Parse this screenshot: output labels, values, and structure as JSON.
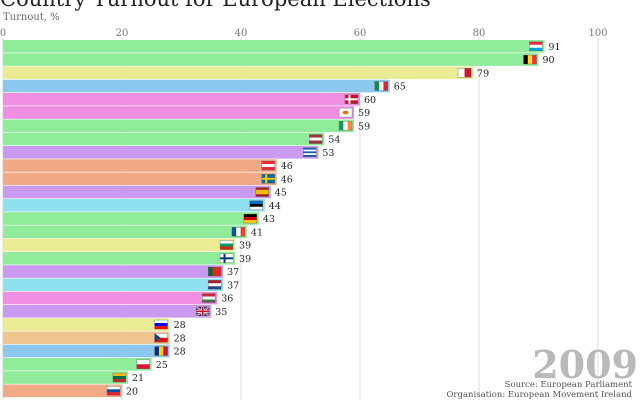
{
  "chart_data": {
    "type": "bar",
    "orientation": "horizontal",
    "title": "Country Turnout for European Elections",
    "xlabel": "Turnout, %",
    "xlim": [
      0,
      108
    ],
    "xticks": [
      0,
      20,
      40,
      60,
      80,
      100
    ],
    "year": "2009",
    "source": "Source: European Parliament",
    "organisation": "Organisation: European Movement Ireland",
    "bars": [
      {
        "country": "Luxembourg",
        "value": 91,
        "color": "#90ec9a",
        "flag": [
          [
            "#ed2939",
            "#ffffff",
            "#00a1de"
          ],
          "h"
        ]
      },
      {
        "country": "Belgium",
        "value": 90,
        "color": "#90ec9a",
        "flag": [
          [
            "#000000",
            "#fdda24",
            "#ef3340"
          ],
          "v"
        ]
      },
      {
        "country": "Malta",
        "value": 79,
        "color": "#eaec94",
        "flag": [
          [
            "#ffffff",
            "#cf142b"
          ],
          "v"
        ]
      },
      {
        "country": "Italy",
        "value": 65,
        "color": "#8cc7ee",
        "flag": [
          [
            "#009246",
            "#ffffff",
            "#ce2b37"
          ],
          "v"
        ]
      },
      {
        "country": "Denmark",
        "value": 60,
        "color": "#ee8fe2",
        "flag": [
          [
            "#c8102e"
          ],
          "cross-white"
        ]
      },
      {
        "country": "Cyprus",
        "value": 59,
        "color": "#ee8fe2",
        "flag": [
          [
            "#ffffff",
            "#d57800"
          ],
          "dot"
        ]
      },
      {
        "country": "Ireland",
        "value": 59,
        "color": "#90ec9a",
        "flag": [
          [
            "#169b62",
            "#ffffff",
            "#ff883e"
          ],
          "v"
        ]
      },
      {
        "country": "Latvia",
        "value": 54,
        "color": "#90ec9a",
        "flag": [
          [
            "#9e3039",
            "#ffffff",
            "#9e3039"
          ],
          "h"
        ]
      },
      {
        "country": "Greece",
        "value": 53,
        "color": "#c99af0",
        "flag": [
          [
            "#0d5eaf",
            "#ffffff",
            "#0d5eaf",
            "#ffffff",
            "#0d5eaf"
          ],
          "h"
        ]
      },
      {
        "country": "Austria",
        "value": 46,
        "color": "#f0ab86",
        "flag": [
          [
            "#ed2939",
            "#ffffff",
            "#ed2939"
          ],
          "h"
        ]
      },
      {
        "country": "Sweden",
        "value": 46,
        "color": "#f0ab86",
        "flag": [
          [
            "#006aa7"
          ],
          "cross-yellow"
        ]
      },
      {
        "country": "Spain",
        "value": 45,
        "color": "#c99af0",
        "flag": [
          [
            "#aa151b",
            "#f1bf00",
            "#f1bf00",
            "#aa151b"
          ],
          "h"
        ]
      },
      {
        "country": "Estonia",
        "value": 44,
        "color": "#90e0f0",
        "flag": [
          [
            "#0072ce",
            "#000000",
            "#ffffff"
          ],
          "h"
        ]
      },
      {
        "country": "Germany",
        "value": 43,
        "color": "#90ec9a",
        "flag": [
          [
            "#000000",
            "#dd0000",
            "#ffce00"
          ],
          "h"
        ]
      },
      {
        "country": "France",
        "value": 41,
        "color": "#90ec9a",
        "flag": [
          [
            "#0055a4",
            "#ffffff",
            "#ef4135"
          ],
          "v"
        ]
      },
      {
        "country": "Bulgaria",
        "value": 39,
        "color": "#eaec94",
        "flag": [
          [
            "#ffffff",
            "#00966e",
            "#d62612"
          ],
          "h"
        ]
      },
      {
        "country": "Finland",
        "value": 39,
        "color": "#90ec9a",
        "flag": [
          [
            "#ffffff"
          ],
          "cross-blue"
        ]
      },
      {
        "country": "Portugal",
        "value": 37,
        "color": "#c99af0",
        "flag": [
          [
            "#046a38",
            "#da291c",
            "#da291c"
          ],
          "v"
        ]
      },
      {
        "country": "Netherlands",
        "value": 37,
        "color": "#90e0f0",
        "flag": [
          [
            "#ae1c28",
            "#ffffff",
            "#21468b"
          ],
          "h"
        ]
      },
      {
        "country": "Hungary",
        "value": 36,
        "color": "#ee8fe2",
        "flag": [
          [
            "#ce2939",
            "#ffffff",
            "#477050"
          ],
          "h"
        ]
      },
      {
        "country": "United Kingdom",
        "value": 35,
        "color": "#c99af0",
        "flag": [
          [
            "#012169"
          ],
          "union"
        ]
      },
      {
        "country": "Slovenia",
        "value": 28,
        "color": "#eaec94",
        "flag": [
          [
            "#ffffff",
            "#0000ff",
            "#ff0000"
          ],
          "h"
        ]
      },
      {
        "country": "Czech Republic",
        "value": 28,
        "color": "#f0c48e",
        "flag": [
          [
            "#ffffff",
            "#d7141a"
          ],
          "czech"
        ]
      },
      {
        "country": "Romania",
        "value": 28,
        "color": "#8cc7ee",
        "flag": [
          [
            "#002b7f",
            "#fcd116",
            "#ce1126"
          ],
          "v"
        ]
      },
      {
        "country": "Poland",
        "value": 25,
        "color": "#90ec9a",
        "flag": [
          [
            "#ffffff",
            "#dc143c"
          ],
          "h"
        ]
      },
      {
        "country": "Lithuania",
        "value": 21,
        "color": "#90ec9a",
        "flag": [
          [
            "#fdb913",
            "#006a44",
            "#c1272d"
          ],
          "h"
        ]
      },
      {
        "country": "Slovakia",
        "value": 20,
        "color": "#f0ab86",
        "flag": [
          [
            "#ffffff",
            "#0b4ea2",
            "#ee1c25"
          ],
          "h"
        ]
      }
    ]
  }
}
